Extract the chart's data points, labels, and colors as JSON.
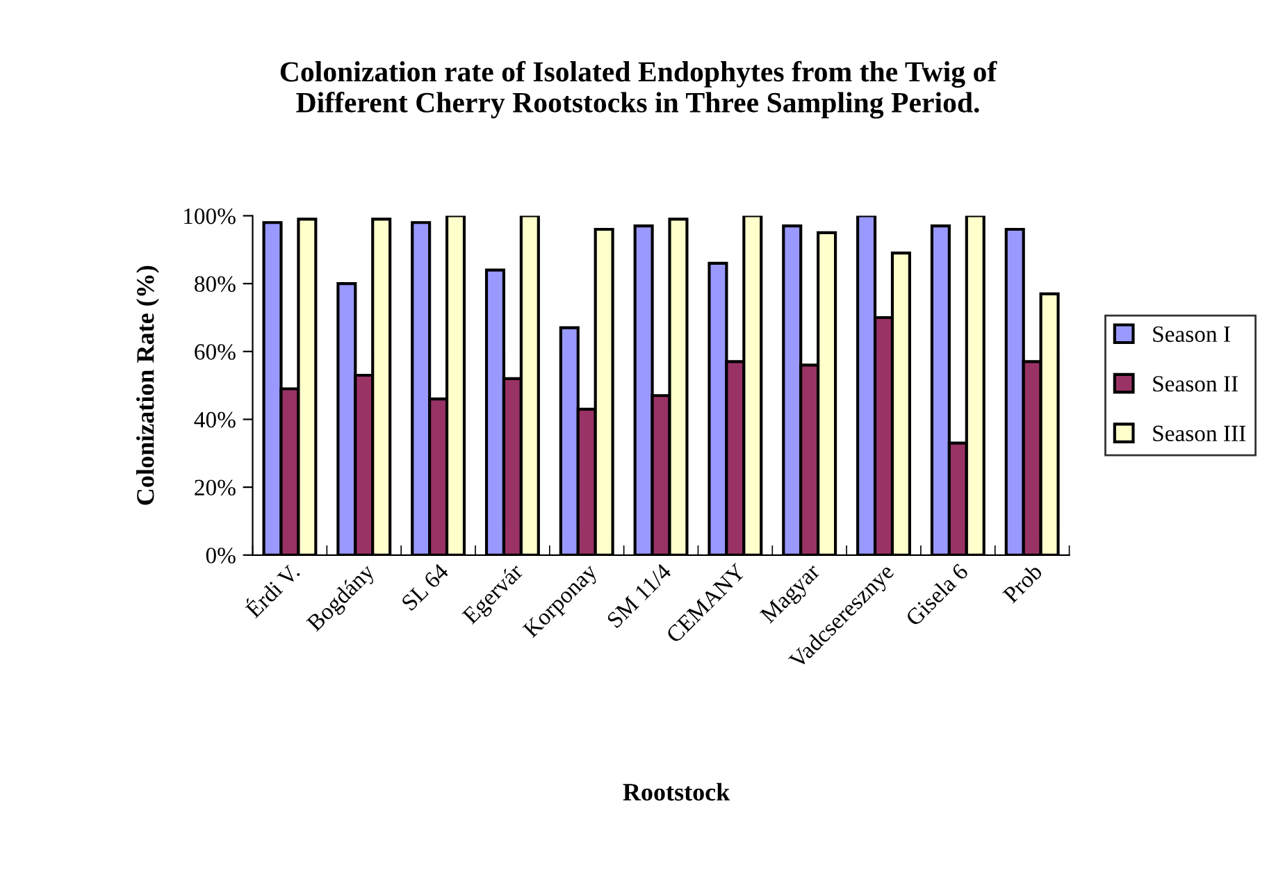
{
  "chart_data": {
    "type": "bar",
    "title": "Colonization rate of Isolated Endophytes from the Twig of\nDifferent Cherry Rootstocks in Three Sampling Period.",
    "xlabel": "Rootstock",
    "ylabel": "Colonization Rate (%)",
    "categories": [
      "Érdi V.",
      "Bogdány",
      "SL 64",
      "Egervár",
      "Korponay",
      "SM 11/4",
      "CEMANY",
      "Magyar",
      "Vadcseresznye",
      "Gisela 6",
      "Prob"
    ],
    "series": [
      {
        "name": "Season I",
        "color": "#9999ff",
        "values": [
          98,
          80,
          98,
          84,
          67,
          97,
          86,
          97,
          100,
          97,
          96
        ]
      },
      {
        "name": "Season II",
        "color": "#993366",
        "values": [
          49,
          53,
          46,
          52,
          43,
          47,
          57,
          56,
          70,
          33,
          57
        ]
      },
      {
        "name": "Season III",
        "color": "#ffffcc",
        "values": [
          99,
          99,
          100,
          100,
          96,
          99,
          100,
          95,
          89,
          100,
          77
        ]
      }
    ],
    "ylim": [
      0,
      100
    ],
    "yticks": [
      {
        "value": 0,
        "label": "0%"
      },
      {
        "value": 20,
        "label": "20%"
      },
      {
        "value": 40,
        "label": "40%"
      },
      {
        "value": 60,
        "label": "60%"
      },
      {
        "value": 80,
        "label": "80%"
      },
      {
        "value": 100,
        "label": "100%"
      }
    ],
    "grid": false,
    "legend": "right"
  }
}
